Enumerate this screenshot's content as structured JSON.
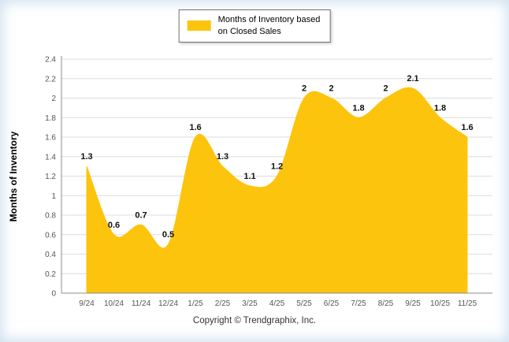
{
  "legend": {
    "line1": "Months of Inventory based",
    "line2": "on Closed Sales"
  },
  "footer": {
    "text": "Copyright © Trendgraphix, Inc."
  },
  "colors": {
    "series": "#fcc40d",
    "grid": "#dcdcdc",
    "axis": "#8c8c8c",
    "tick_text": "#555555",
    "label_text": "#111111"
  },
  "chart_data": {
    "type": "area",
    "title": "",
    "series_name": "Months of Inventory based on Closed Sales",
    "xlabel": "",
    "ylabel": "Months of Inventory",
    "categories": [
      "9/24",
      "10/24",
      "11/24",
      "12/24",
      "1/25",
      "2/25",
      "3/25",
      "4/25",
      "5/25",
      "6/25",
      "7/25",
      "8/25",
      "9/25",
      "10/25",
      "11/25"
    ],
    "values": [
      1.3,
      0.6,
      0.7,
      0.5,
      1.6,
      1.3,
      1.1,
      1.2,
      2,
      2,
      1.8,
      2,
      2.1,
      1.8,
      1.6
    ],
    "ylim": [
      0,
      2.4
    ],
    "ytick_step": 0.2,
    "grid": true,
    "legend_position": "top",
    "point_labels": true
  }
}
